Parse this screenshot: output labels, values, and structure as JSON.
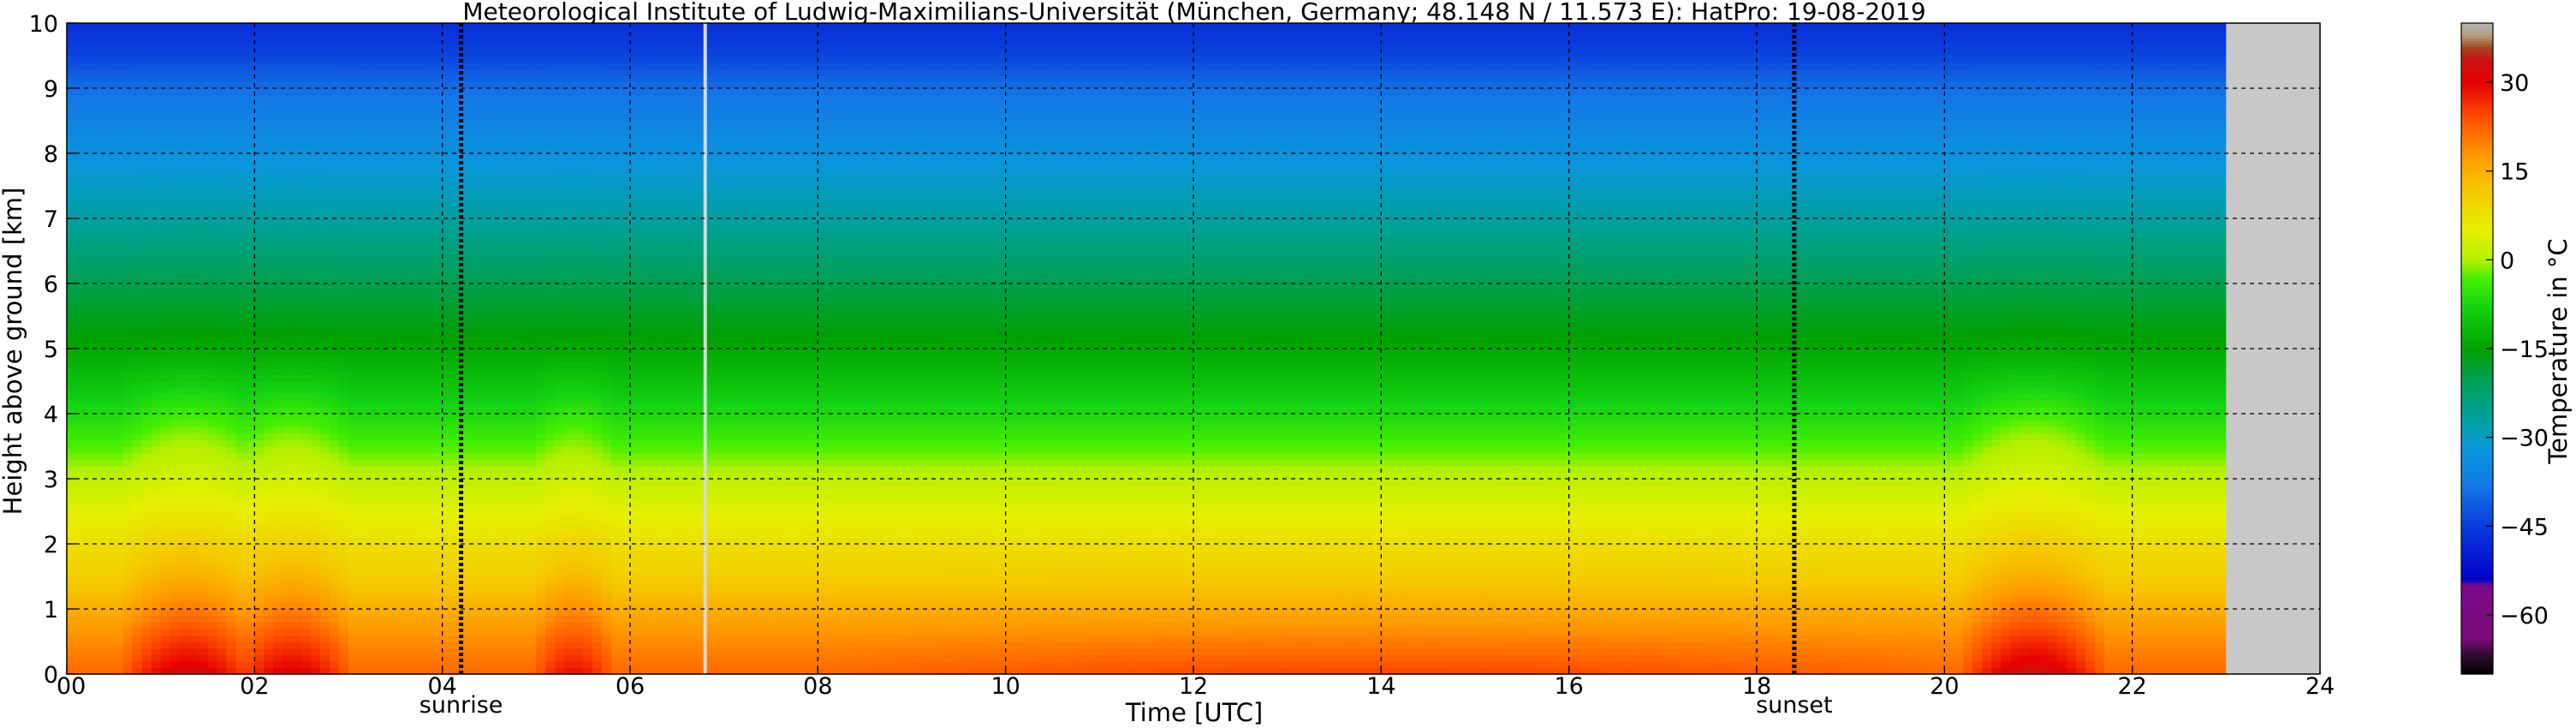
{
  "chart_data": {
    "type": "heatmap",
    "title": "Meteorological Institute of Ludwig-Maximilians-Universität (München, Germany; 48.148 N / 11.573 E):    HatPro: 19-08-2019",
    "xlabel": "Time [UTC]",
    "ylabel": "Height above ground [km]",
    "xlim": [
      0,
      24
    ],
    "ylim": [
      0,
      10
    ],
    "xticks": [
      0,
      2,
      4,
      6,
      8,
      10,
      12,
      14,
      16,
      18,
      20,
      22,
      24
    ],
    "xtick_labels": [
      "00",
      "02",
      "04",
      "06",
      "08",
      "10",
      "12",
      "14",
      "16",
      "18",
      "20",
      "22",
      "24"
    ],
    "yticks": [
      0,
      1,
      2,
      3,
      4,
      5,
      6,
      7,
      8,
      9,
      10
    ],
    "ytick_labels": [
      "0",
      "1",
      "2",
      "3",
      "4",
      "5",
      "6",
      "7",
      "8",
      "9",
      "10"
    ],
    "grid": true,
    "data_end_hour": 23.0,
    "missing_data_color": "#c8c8c8",
    "gap_line_hour": 6.8,
    "markers": [
      {
        "label": "sunrise",
        "hour": 4.2
      },
      {
        "label": "sunset",
        "hour": 18.4
      }
    ],
    "temperature_profile": {
      "description_units": "°C",
      "heights_km": [
        0,
        0.5,
        1,
        1.5,
        2,
        3,
        4,
        5,
        6,
        7,
        8,
        9,
        9.5,
        10
      ],
      "base_temps": [
        22,
        19,
        15,
        11,
        8,
        1,
        -7,
        -14,
        -20,
        -27,
        -33,
        -39,
        -44,
        -47
      ]
    },
    "warm_events": [
      {
        "start_hour": 0.7,
        "end_hour": 1.9,
        "surface_warming": 10
      },
      {
        "start_hour": 1.9,
        "end_hour": 2.9,
        "surface_warming": 9
      },
      {
        "start_hour": 5.1,
        "end_hour": 5.7,
        "surface_warming": 7
      },
      {
        "start_hour": 20.3,
        "end_hour": 21.6,
        "surface_warming": 11
      }
    ],
    "colorbar": {
      "label": "Temperature in °C",
      "min": -70,
      "max": 40,
      "ticks": [
        30,
        15,
        0,
        -15,
        -30,
        -45,
        -60
      ],
      "tick_labels": [
        "30",
        "15",
        "0",
        "−15",
        "−30",
        "−45",
        "−60"
      ],
      "stops": [
        {
          "value": -70,
          "color": "#000000"
        },
        {
          "value": -67,
          "color": "#2a0a2a"
        },
        {
          "value": -64,
          "color": "#7a0a7a"
        },
        {
          "value": -55,
          "color": "#7a0a8a"
        },
        {
          "value": -54,
          "color": "#0000c8"
        },
        {
          "value": -45,
          "color": "#0a3cdc"
        },
        {
          "value": -38,
          "color": "#1478e6"
        },
        {
          "value": -32,
          "color": "#0a96dc"
        },
        {
          "value": -27,
          "color": "#00a0a0"
        },
        {
          "value": -20,
          "color": "#00a050"
        },
        {
          "value": -15,
          "color": "#00a000"
        },
        {
          "value": -8,
          "color": "#14d214"
        },
        {
          "value": -3,
          "color": "#46f000"
        },
        {
          "value": 0,
          "color": "#b4f000"
        },
        {
          "value": 5,
          "color": "#e6f000"
        },
        {
          "value": 12,
          "color": "#f5c800"
        },
        {
          "value": 18,
          "color": "#ff9600"
        },
        {
          "value": 24,
          "color": "#ff5000"
        },
        {
          "value": 30,
          "color": "#e60000"
        },
        {
          "value": 34,
          "color": "#c81414"
        },
        {
          "value": 36,
          "color": "#a04a20"
        },
        {
          "value": 38,
          "color": "#b4a080"
        },
        {
          "value": 40,
          "color": "#b4b4b4"
        }
      ]
    }
  }
}
